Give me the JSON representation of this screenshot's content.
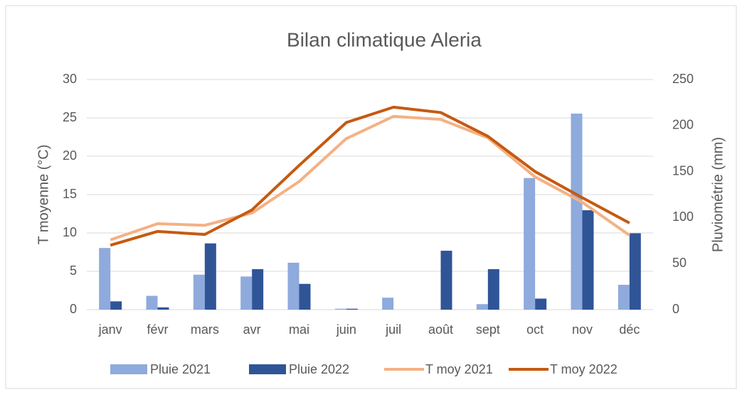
{
  "chart_data": {
    "type": "combo",
    "title": "Bilan climatique Aleria",
    "ylabel": "T moyenne (°C)",
    "y2label": "Pluviométrie (mm)",
    "categories": [
      "janv",
      "févr",
      "mars",
      "avr",
      "mai",
      "juin",
      "juil",
      "août",
      "sept",
      "oct",
      "nov",
      "déc"
    ],
    "series": [
      {
        "name": "Pluie 2021",
        "type": "bar",
        "axis": "y2",
        "color": "#8faadc",
        "values": [
          67,
          15,
          38,
          36,
          51,
          1,
          13,
          0,
          6,
          143,
          213,
          27
        ]
      },
      {
        "name": "Pluie 2022",
        "type": "bar",
        "axis": "y2",
        "color": "#2f5597",
        "values": [
          9,
          2.5,
          72,
          44,
          28,
          1,
          0,
          64,
          44,
          12,
          108,
          83
        ]
      },
      {
        "name": "T moy 2021",
        "type": "line",
        "color": "#f4b183",
        "values": [
          9.1,
          11.2,
          11.0,
          12.6,
          16.7,
          22.3,
          25.2,
          24.8,
          22.4,
          17.3,
          14.0,
          9.7
        ]
      },
      {
        "name": "T moy 2022",
        "type": "line",
        "color": "#c55a11",
        "values": [
          8.4,
          10.2,
          9.8,
          13.0,
          18.8,
          24.4,
          26.4,
          25.7,
          22.6,
          18.0,
          14.6,
          11.3
        ]
      }
    ],
    "ylim": [
      0,
      30
    ],
    "yticks": [
      0,
      5,
      10,
      15,
      20,
      25,
      30
    ],
    "y2lim": [
      0,
      250
    ],
    "y2ticks": [
      0,
      50,
      100,
      150,
      200,
      250
    ],
    "grid": true,
    "legend": "bottom"
  }
}
